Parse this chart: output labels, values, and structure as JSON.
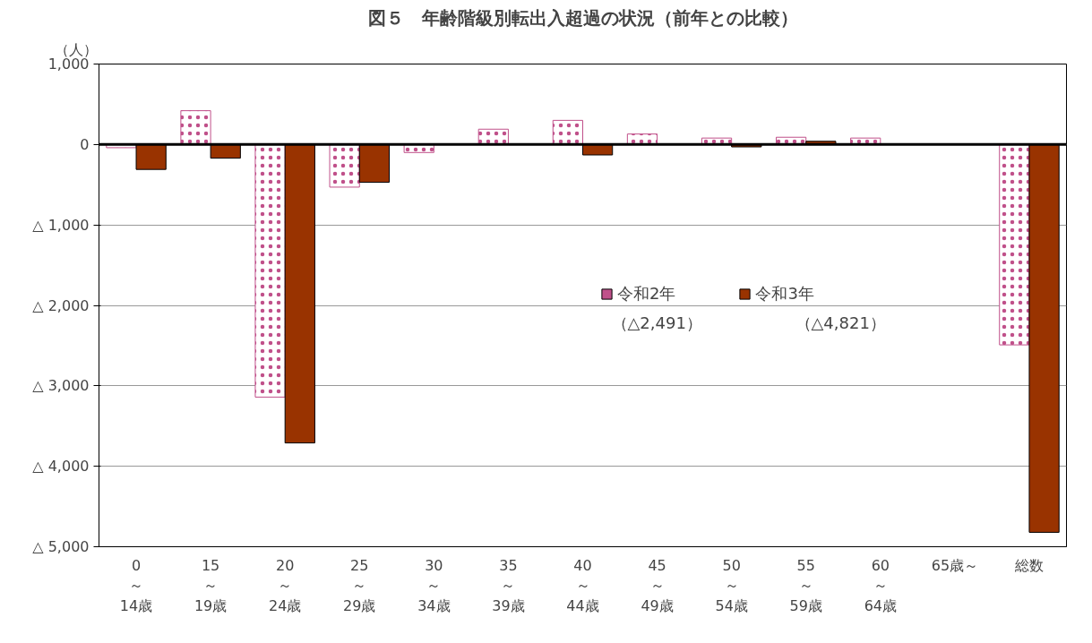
{
  "chart_data": {
    "type": "bar",
    "title": "図５　年齢階級別転出入超過の状況（前年との比較）",
    "ylabel": "（人）",
    "categories": [
      "0\n～\n14歳",
      "15\n～\n19歳",
      "20\n～\n24歳",
      "25\n～\n29歳",
      "30\n～\n34歳",
      "35\n～\n39歳",
      "40\n～\n44歳",
      "45\n～\n49歳",
      "50\n～\n54歳",
      "55\n～\n59歳",
      "60\n～\n64歳",
      "65歳～",
      "総数"
    ],
    "series": [
      {
        "name": "令和2年",
        "color": "#c0508a",
        "values": [
          -40,
          420,
          -3140,
          -530,
          -100,
          190,
          300,
          130,
          80,
          90,
          80,
          0,
          -2491
        ]
      },
      {
        "name": "令和3年",
        "color": "#993300",
        "values": [
          -310,
          -170,
          -3710,
          -470,
          null,
          null,
          -130,
          null,
          -30,
          40,
          null,
          null,
          -4821
        ]
      }
    ],
    "ylim": [
      -5000,
      1000
    ],
    "yticks": [
      {
        "value": 1000,
        "label": "1,000"
      },
      0,
      {
        "value": -1000,
        "label": "△ 1,000"
      },
      {
        "value": -2000,
        "label": "△ 2,000"
      },
      {
        "value": -3000,
        "label": "△ 3,000"
      },
      {
        "value": -4000,
        "label": "△ 4,000"
      },
      {
        "value": -5000,
        "label": "△ 5,000"
      }
    ],
    "grid": "y",
    "legend": "center",
    "annotations": [
      "（△2,491）",
      "（△4,821）"
    ]
  }
}
